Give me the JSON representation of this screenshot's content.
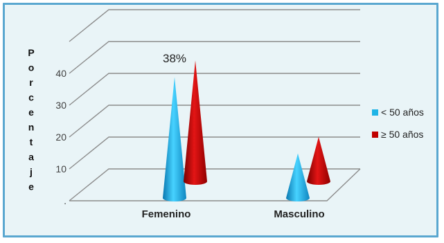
{
  "chart_data": {
    "type": "bar",
    "style": "3d-cone",
    "categories": [
      "Femenino",
      "Masculino"
    ],
    "series": [
      {
        "name": "< 50 años",
        "color": "#1fb4e6",
        "values": [
          38,
          14
        ]
      },
      {
        "name": "≥ 50 años",
        "color": "#c00000",
        "values": [
          38,
          14
        ]
      }
    ],
    "ylabel": "Porcentaje",
    "yticks": [
      "40",
      "30",
      "20",
      "10",
      "."
    ],
    "ylim": [
      0,
      40
    ],
    "annotations": [
      {
        "category": "Femenino",
        "series": 0,
        "text": "38%"
      }
    ],
    "grid": true,
    "legend": "right",
    "colors": {
      "frame": "#5aa7d0",
      "background": "#e9f4f7",
      "grid": "#8c8c8c"
    }
  }
}
